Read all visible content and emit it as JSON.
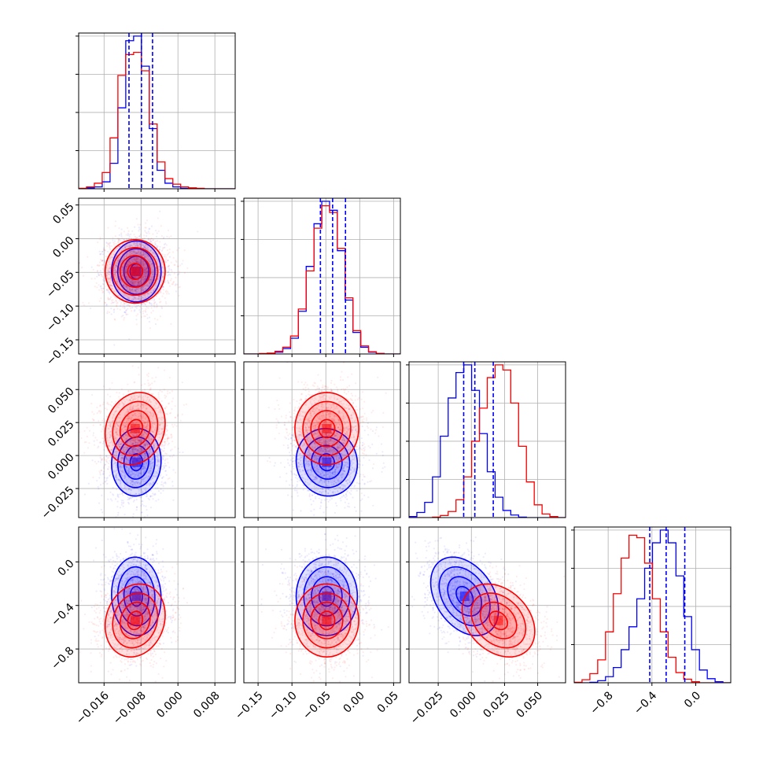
{
  "chart_data": {
    "type": "corner",
    "series": [
      {
        "name": "",
        "color": "#0000ff"
      },
      {
        "name": "",
        "color": "#ff0000"
      }
    ],
    "params": [
      {
        "range": [
          -0.0215,
          0.0124
        ],
        "ticks": [
          -0.016,
          -0.008,
          0.0,
          0.008
        ],
        "tick_labels": [
          "−0.016",
          "−0.008",
          "0.000",
          "0.008"
        ]
      },
      {
        "range": [
          -0.171,
          0.06
        ],
        "ticks": [
          -0.15,
          -0.1,
          -0.05,
          0.0,
          0.05
        ],
        "tick_labels": [
          "−0.15",
          "−0.10",
          "−0.05",
          "0.00",
          "0.05"
        ]
      },
      {
        "range": [
          -0.047,
          0.071
        ],
        "ticks": [
          -0.025,
          0.0,
          0.025,
          0.05
        ],
        "tick_labels": [
          "−0.025",
          "0.000",
          "0.025",
          "0.050"
        ]
      },
      {
        "range": [
          -1.11,
          0.32
        ],
        "ticks": [
          -0.8,
          -0.4,
          0.0
        ],
        "tick_labels": [
          "−0.8",
          "−0.4",
          "0.0"
        ]
      }
    ],
    "quantiles": [
      [
        -0.0106,
        -0.0079,
        -0.0055
      ],
      [
        -0.058,
        -0.04,
        -0.021
      ],
      [
        -0.0058,
        0.0026,
        0.0165
      ],
      [
        -0.42,
        -0.27,
        -0.1
      ]
    ],
    "histograms": [
      {
        "bin_edges": [
          -0.0215,
          -0.0198,
          -0.0181,
          -0.0164,
          -0.0147,
          -0.013,
          -0.0113,
          -0.0096,
          -0.0079,
          -0.0062,
          -0.0045,
          -0.0028,
          -0.0011,
          0.0006,
          0.0023,
          0.004,
          0.0057,
          0.0074,
          0.0091,
          0.0108,
          0.0124
        ],
        "counts": [
          [
            0,
            2,
            4,
            15,
            55,
            175,
            320,
            330,
            265,
            130,
            40,
            12,
            4,
            1,
            0,
            0,
            0,
            0,
            0,
            0
          ],
          [
            1,
            4,
            12,
            35,
            110,
            245,
            290,
            295,
            255,
            140,
            58,
            22,
            10,
            4,
            2,
            1,
            0,
            0,
            0,
            0
          ]
        ]
      },
      {
        "bin_edges": [
          -0.171,
          -0.1595,
          -0.148,
          -0.1365,
          -0.125,
          -0.1135,
          -0.102,
          -0.0905,
          -0.079,
          -0.0675,
          -0.056,
          -0.0445,
          -0.033,
          -0.0215,
          -0.01,
          0.0015,
          0.013,
          0.0245,
          0.036,
          0.0475,
          0.06
        ],
        "counts": [
          [
            0,
            0,
            0,
            1,
            4,
            12,
            35,
            95,
            195,
            290,
            340,
            320,
            230,
            120,
            48,
            15,
            4,
            1,
            0,
            0
          ],
          [
            0,
            0,
            1,
            2,
            6,
            15,
            40,
            100,
            185,
            280,
            330,
            315,
            235,
            125,
            52,
            18,
            5,
            1,
            0,
            0
          ]
        ]
      },
      {
        "bin_edges": [
          -0.047,
          -0.0411,
          -0.0352,
          -0.0293,
          -0.0234,
          -0.0175,
          -0.0116,
          -0.0057,
          0.0002,
          0.0061,
          0.012,
          0.0179,
          0.0238,
          0.0297,
          0.0356,
          0.0415,
          0.0474,
          0.0533,
          0.0592,
          0.0651,
          0.071
        ],
        "counts": [
          [
            2,
            10,
            30,
            80,
            160,
            235,
            285,
            300,
            250,
            165,
            90,
            40,
            14,
            5,
            1,
            0,
            0,
            0,
            0,
            0
          ],
          [
            0,
            0,
            0,
            1,
            4,
            12,
            35,
            80,
            150,
            215,
            275,
            300,
            290,
            225,
            140,
            70,
            25,
            7,
            2,
            0
          ]
        ]
      },
      {
        "bin_edges": [
          -1.11,
          -1.0385,
          -0.967,
          -0.8955,
          -0.824,
          -0.7525,
          -0.681,
          -0.6095,
          -0.538,
          -0.4665,
          -0.395,
          -0.3235,
          -0.252,
          -0.1805,
          -0.109,
          -0.0375,
          0.034,
          0.1055,
          0.177,
          0.2485,
          0.32
        ],
        "counts": [
          [
            0,
            0,
            1,
            4,
            12,
            30,
            65,
            110,
            165,
            225,
            275,
            300,
            275,
            210,
            130,
            65,
            25,
            8,
            2,
            0
          ],
          [
            1,
            6,
            18,
            45,
            100,
            175,
            245,
            290,
            285,
            235,
            165,
            100,
            50,
            20,
            7,
            2,
            0,
            0,
            0,
            0
          ]
        ]
      }
    ],
    "correlations": [
      [
        [
          1.0,
          0.0,
          0.05,
          -0.05
        ],
        [
          1.0,
          0.0,
          0.15,
          0.15
        ]
      ],
      [
        [
          0.0,
          1.0,
          -0.05,
          0.0
        ],
        [
          0.0,
          1.0,
          0.0,
          0.0
        ]
      ],
      [
        [
          0.05,
          -0.05,
          1.0,
          -0.35
        ],
        [
          0.15,
          0.0,
          1.0,
          -0.3
        ]
      ],
      [
        [
          -0.05,
          0.0,
          -0.35,
          1.0
        ],
        [
          0.15,
          0.0,
          -0.3,
          1.0
        ]
      ]
    ],
    "contour_levels": [
      0.5,
      1.0,
      1.5,
      2.0
    ],
    "grid": true,
    "legend": "none"
  }
}
